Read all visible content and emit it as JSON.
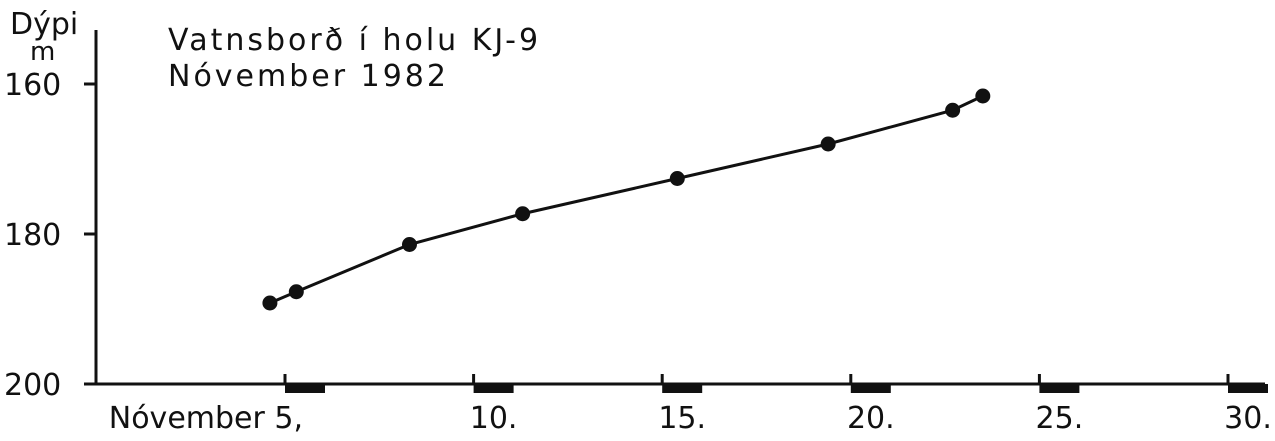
{
  "chart_data": {
    "type": "line",
    "title": "Vatnsborð í holu KJ-9",
    "subtitle": "Nóvember 1982",
    "ylabel": "Dýpi",
    "yunit": "m",
    "ylim": [
      160,
      200
    ],
    "y_inverted": true,
    "y_ticks": [
      {
        "value": 160,
        "label": "160"
      },
      {
        "value": 180,
        "label": "180"
      },
      {
        "value": 200,
        "label": "200"
      }
    ],
    "xlim": [
      1,
      31
    ],
    "x_ticks": [
      {
        "value": 5,
        "label": "Nóvember 5,"
      },
      {
        "value": 10,
        "label": "10."
      },
      {
        "value": 15,
        "label": "15."
      },
      {
        "value": 20,
        "label": "20."
      },
      {
        "value": 25,
        "label": "25."
      },
      {
        "value": 30,
        "label": "30."
      }
    ],
    "grid": false,
    "series": [
      {
        "x": [
          4.6,
          5.3,
          8.3,
          11.3,
          15.4,
          19.4,
          22.7,
          23.5
        ],
        "values": [
          189.2,
          187.7,
          181.4,
          177.3,
          172.6,
          168.0,
          163.5,
          161.6
        ]
      }
    ]
  }
}
